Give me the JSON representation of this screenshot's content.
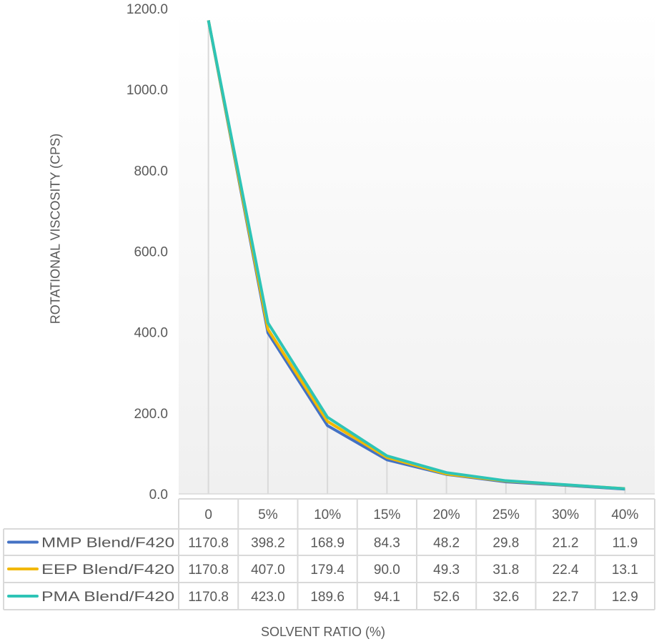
{
  "chart_data": {
    "type": "line",
    "title": "",
    "xlabel": "SOLVENT RATIO (%)",
    "ylabel": "ROTATIONAL VISCOSITY (CPS)",
    "ylim": [
      0,
      1200
    ],
    "yticks": [
      "0.0",
      "200.0",
      "400.0",
      "600.0",
      "800.0",
      "1000.0",
      "1200.0"
    ],
    "categories": [
      "0",
      "5%",
      "10%",
      "15%",
      "20%",
      "25%",
      "30%",
      "40%"
    ],
    "data_table": true,
    "drop_lines": true,
    "legend_placement": "data-table",
    "series": [
      {
        "name": "MMP Blend/F420",
        "color": "#4472C4",
        "values": [
          1170.8,
          398.2,
          168.9,
          84.3,
          48.2,
          29.8,
          21.2,
          11.9
        ],
        "labels": [
          "1170.8",
          "398.2",
          "168.9",
          "84.3",
          "48.2",
          "29.8",
          "21.2",
          "11.9"
        ]
      },
      {
        "name": "EEP Blend/F420",
        "color": "#F2B800",
        "values": [
          1170.8,
          407.0,
          179.4,
          90.0,
          49.3,
          31.8,
          22.4,
          13.1
        ],
        "labels": [
          "1170.8",
          "407.0",
          "179.4",
          "90.0",
          "49.3",
          "31.8",
          "22.4",
          "13.1"
        ]
      },
      {
        "name": "PMA Blend/F420",
        "color": "#2EC4B6",
        "values": [
          1170.8,
          423.0,
          189.6,
          94.1,
          52.6,
          32.6,
          22.7,
          12.9
        ],
        "labels": [
          "1170.8",
          "423.0",
          "189.6",
          "94.1",
          "52.6",
          "32.6",
          "22.7",
          "12.9"
        ]
      }
    ]
  }
}
